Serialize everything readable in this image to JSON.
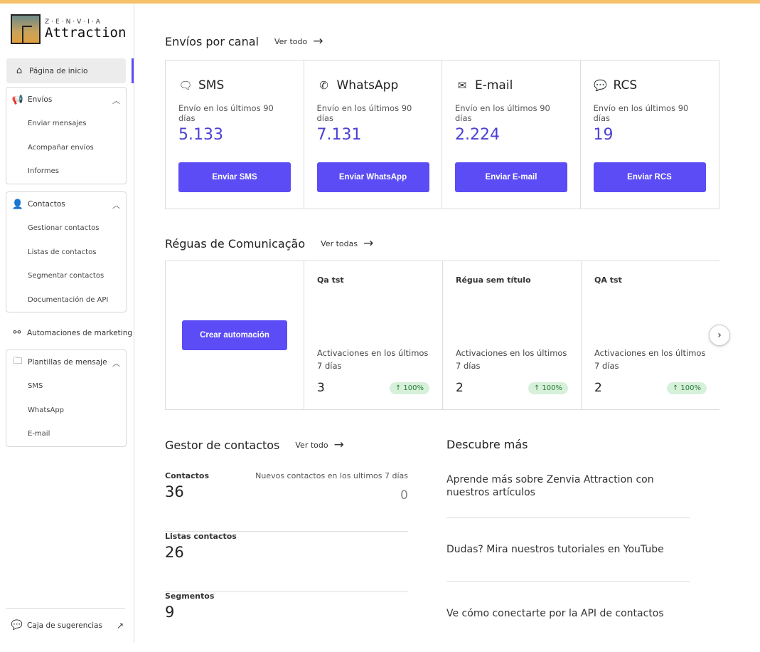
{
  "brand": {
    "top": "Z·E·N·V·I·A",
    "name": "Attraction"
  },
  "sidebar": {
    "home": "Página de inicio",
    "envios": {
      "label": "Envíos",
      "items": [
        "Enviar mensajes",
        "Acompañar envíos",
        "Informes"
      ]
    },
    "contactos": {
      "label": "Contactos",
      "items": [
        "Gestionar contactos",
        "Listas de contactos",
        "Segmentar contactos",
        "Documentación de API"
      ]
    },
    "automaciones": "Automaciones de marketing",
    "plantillas": {
      "label": "Plantillas de mensaje",
      "items": [
        "SMS",
        "WhatsApp",
        "E-mail"
      ]
    },
    "feedback": "Caja de sugerencias"
  },
  "channels": {
    "title": "Envíos por canal",
    "see_all": "Ver todo",
    "items": [
      {
        "name": "SMS",
        "icon": "sms-icon",
        "sub": "Envío en los últimos 90 días",
        "value": "5.133",
        "button": "Enviar SMS"
      },
      {
        "name": "WhatsApp",
        "icon": "whatsapp-icon",
        "sub": "Envío en los últimos 90 días",
        "value": "7.131",
        "button": "Enviar WhatsApp"
      },
      {
        "name": "E-mail",
        "icon": "mail-icon",
        "sub": "Envío en los últimos 90 días",
        "value": "2.224",
        "button": "Enviar E-mail"
      },
      {
        "name": "RCS",
        "icon": "rcs-icon",
        "sub": "Envío en los últimos 90 días",
        "value": "19",
        "button": "Enviar RCS"
      }
    ]
  },
  "reguas": {
    "title": "Réguas de Comunicação",
    "see_all": "Ver todas",
    "create": "Crear automación",
    "items": [
      {
        "name": "Qa tst",
        "sub": "Activaciones en los últimos 7 días",
        "value": "3",
        "change": "100%"
      },
      {
        "name": "Régua sem título",
        "sub": "Activaciones en los últimos 7 días",
        "value": "2",
        "change": "100%"
      },
      {
        "name": "QA tst",
        "sub": "Activaciones en los últimos 7 días",
        "value": "2",
        "change": "100%"
      }
    ]
  },
  "gestor": {
    "title": "Gestor de contactos",
    "see_all": "Ver todo",
    "contactos": {
      "label": "Contactos",
      "value": "36",
      "new_label": "Nuevos contactos en los ultimos 7 días",
      "new_value": "0"
    },
    "listas": {
      "label": "Listas contactos",
      "value": "26"
    },
    "segmentos": {
      "label": "Segmentos",
      "value": "9"
    }
  },
  "descubre": {
    "title": "Descubre más",
    "links": [
      "Aprende más sobre Zenvia Attraction con nuestros artículos",
      "Dudas? Mira nuestros tutoriales en YouTube",
      "Ve cómo conectarte por la API de contactos"
    ]
  },
  "colors": {
    "accent": "#5b4cf5",
    "badge_bg": "#d7f0da",
    "top_bar": "#f5c26b"
  }
}
